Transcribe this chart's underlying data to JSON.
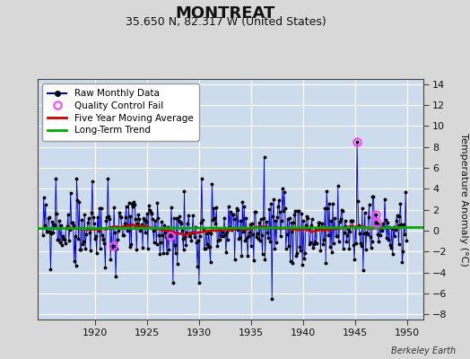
{
  "title": "MONTREAT",
  "subtitle": "35.650 N, 82.317 W (United States)",
  "ylabel": "Temperature Anomaly (°C)",
  "watermark": "Berkeley Earth",
  "xlim": [
    1914.5,
    1951.5
  ],
  "ylim": [
    -8.5,
    14.5
  ],
  "yticks": [
    -8,
    -6,
    -4,
    -2,
    0,
    2,
    4,
    6,
    8,
    10,
    12,
    14
  ],
  "xticks": [
    1920,
    1925,
    1930,
    1935,
    1940,
    1945,
    1950
  ],
  "bg_color": "#d8d8d8",
  "plot_bg_color": "#cddcec",
  "grid_color": "#ffffff",
  "raw_line_color": "#0000cc",
  "raw_fill_color": "#8888dd",
  "marker_color": "#000000",
  "moving_avg_color": "#cc0000",
  "trend_color": "#00aa00",
  "qc_color": "#ff44ff",
  "title_fontsize": 13,
  "subtitle_fontsize": 9,
  "tick_fontsize": 8,
  "ylabel_fontsize": 8,
  "legend_fontsize": 7.5,
  "watermark_fontsize": 7
}
